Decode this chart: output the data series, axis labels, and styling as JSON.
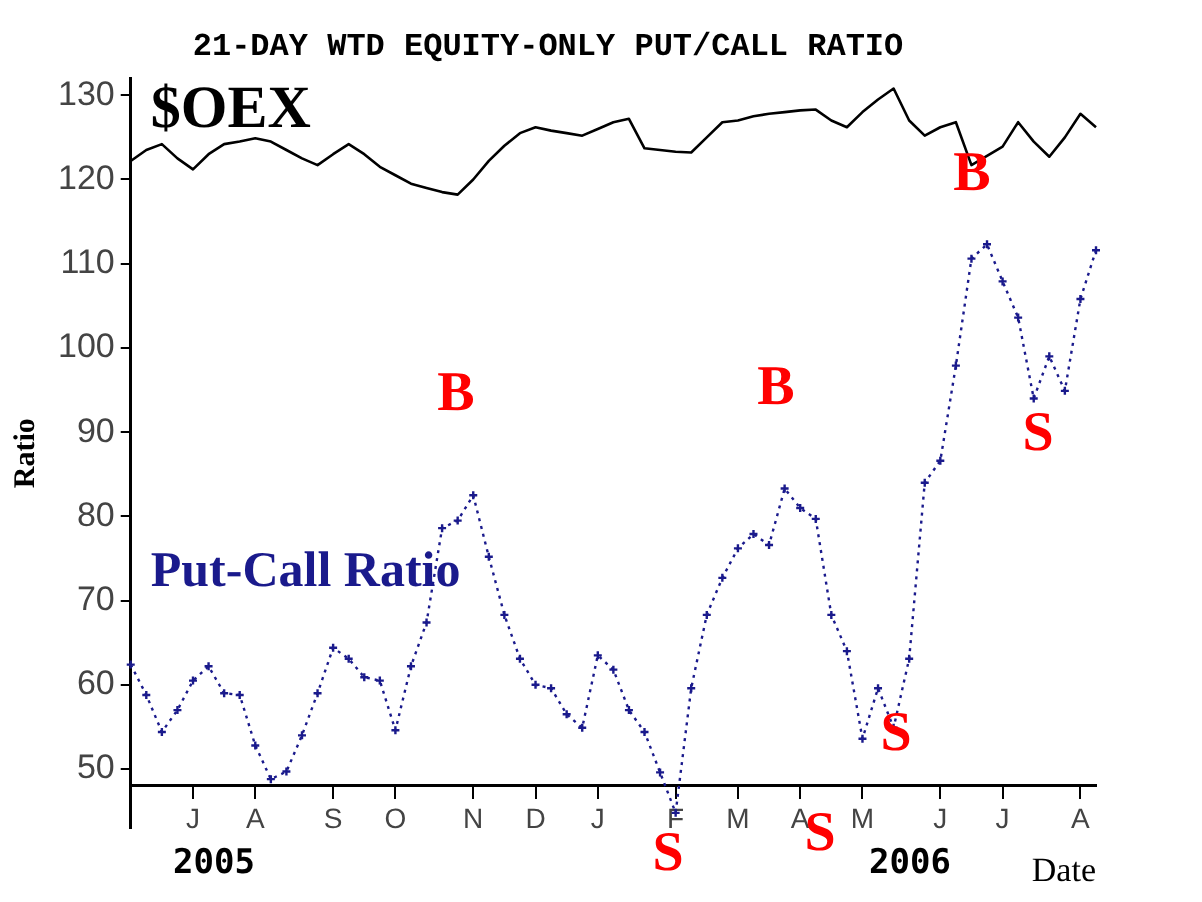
{
  "chart_data": {
    "type": "line",
    "title": "21-DAY WTD EQUITY-ONLY PUT/CALL RATIO",
    "xlabel": "Date",
    "ylabel": "Ratio",
    "categories": [
      null,
      null,
      null,
      null,
      "J",
      null,
      null,
      null,
      "A",
      null,
      null,
      null,
      null,
      "S",
      null,
      null,
      null,
      "O",
      null,
      null,
      null,
      null,
      "N",
      null,
      null,
      null,
      "D",
      null,
      null,
      null,
      "J",
      null,
      null,
      null,
      null,
      "F",
      null,
      null,
      null,
      "M",
      null,
      null,
      null,
      "A",
      null,
      null,
      null,
      "M",
      null,
      null,
      null,
      null,
      "J",
      null,
      null,
      null,
      "J",
      null,
      null,
      null,
      null,
      "A",
      null
    ],
    "ylim": [
      43,
      132
    ],
    "yticks": [
      50,
      60,
      70,
      80,
      90,
      100,
      110,
      120,
      130
    ],
    "grid": false,
    "legend": false,
    "series": [
      {
        "name": "$OEX",
        "color": "#000000",
        "marker": "none",
        "line_style": "solid",
        "values": [
          122.2,
          123.5,
          124.2,
          122.5,
          121.2,
          123,
          124.2,
          124.5,
          124.9,
          124.5,
          123.5,
          122.5,
          121.7,
          123,
          124.2,
          123,
          121.5,
          120.5,
          119.5,
          119,
          118.5,
          118.2,
          120,
          122.2,
          124,
          125.5,
          126.2,
          125.8,
          125.5,
          125.2,
          126,
          126.8,
          127.2,
          123.7,
          123.5,
          123.3,
          123.2,
          125,
          126.8,
          127,
          127.5,
          127.8,
          128,
          128.2,
          128.3,
          127,
          126.2,
          128,
          129.5,
          130.8,
          127,
          125.2,
          126.2,
          126.8,
          121.7,
          122.8,
          123.9,
          126.8,
          124.5,
          122.7,
          125,
          127.8,
          126.2
        ]
      },
      {
        "name": "Put-Call Ratio",
        "color": "#1a1a8c",
        "marker": "cross",
        "line_style": "dotted",
        "values": [
          62.4,
          58.8,
          54.4,
          57,
          60.5,
          62.2,
          59,
          58.8,
          52.8,
          48.8,
          49.7,
          54,
          59,
          64.4,
          63.1,
          60.9,
          60.5,
          54.6,
          62.2,
          67.4,
          78.6,
          79.5,
          82.5,
          75.2,
          68.3,
          63.1,
          60,
          59.6,
          56.5,
          54.9,
          63.5,
          61.8,
          57,
          54.4,
          49.6,
          44.8,
          59.6,
          68.3,
          72.7,
          76.2,
          77.9,
          76.6,
          83.3,
          81,
          79.7,
          68.3,
          64,
          53.6,
          59.6,
          54.9,
          63.1,
          84,
          86.6,
          97.9,
          110.6,
          112.3,
          107.9,
          103.6,
          94,
          99,
          94.9,
          105.8,
          111.6
        ]
      }
    ],
    "annotations": [
      "B",
      "B",
      "B",
      "S",
      "S",
      "S",
      "S",
      "2005",
      "2006"
    ]
  }
}
